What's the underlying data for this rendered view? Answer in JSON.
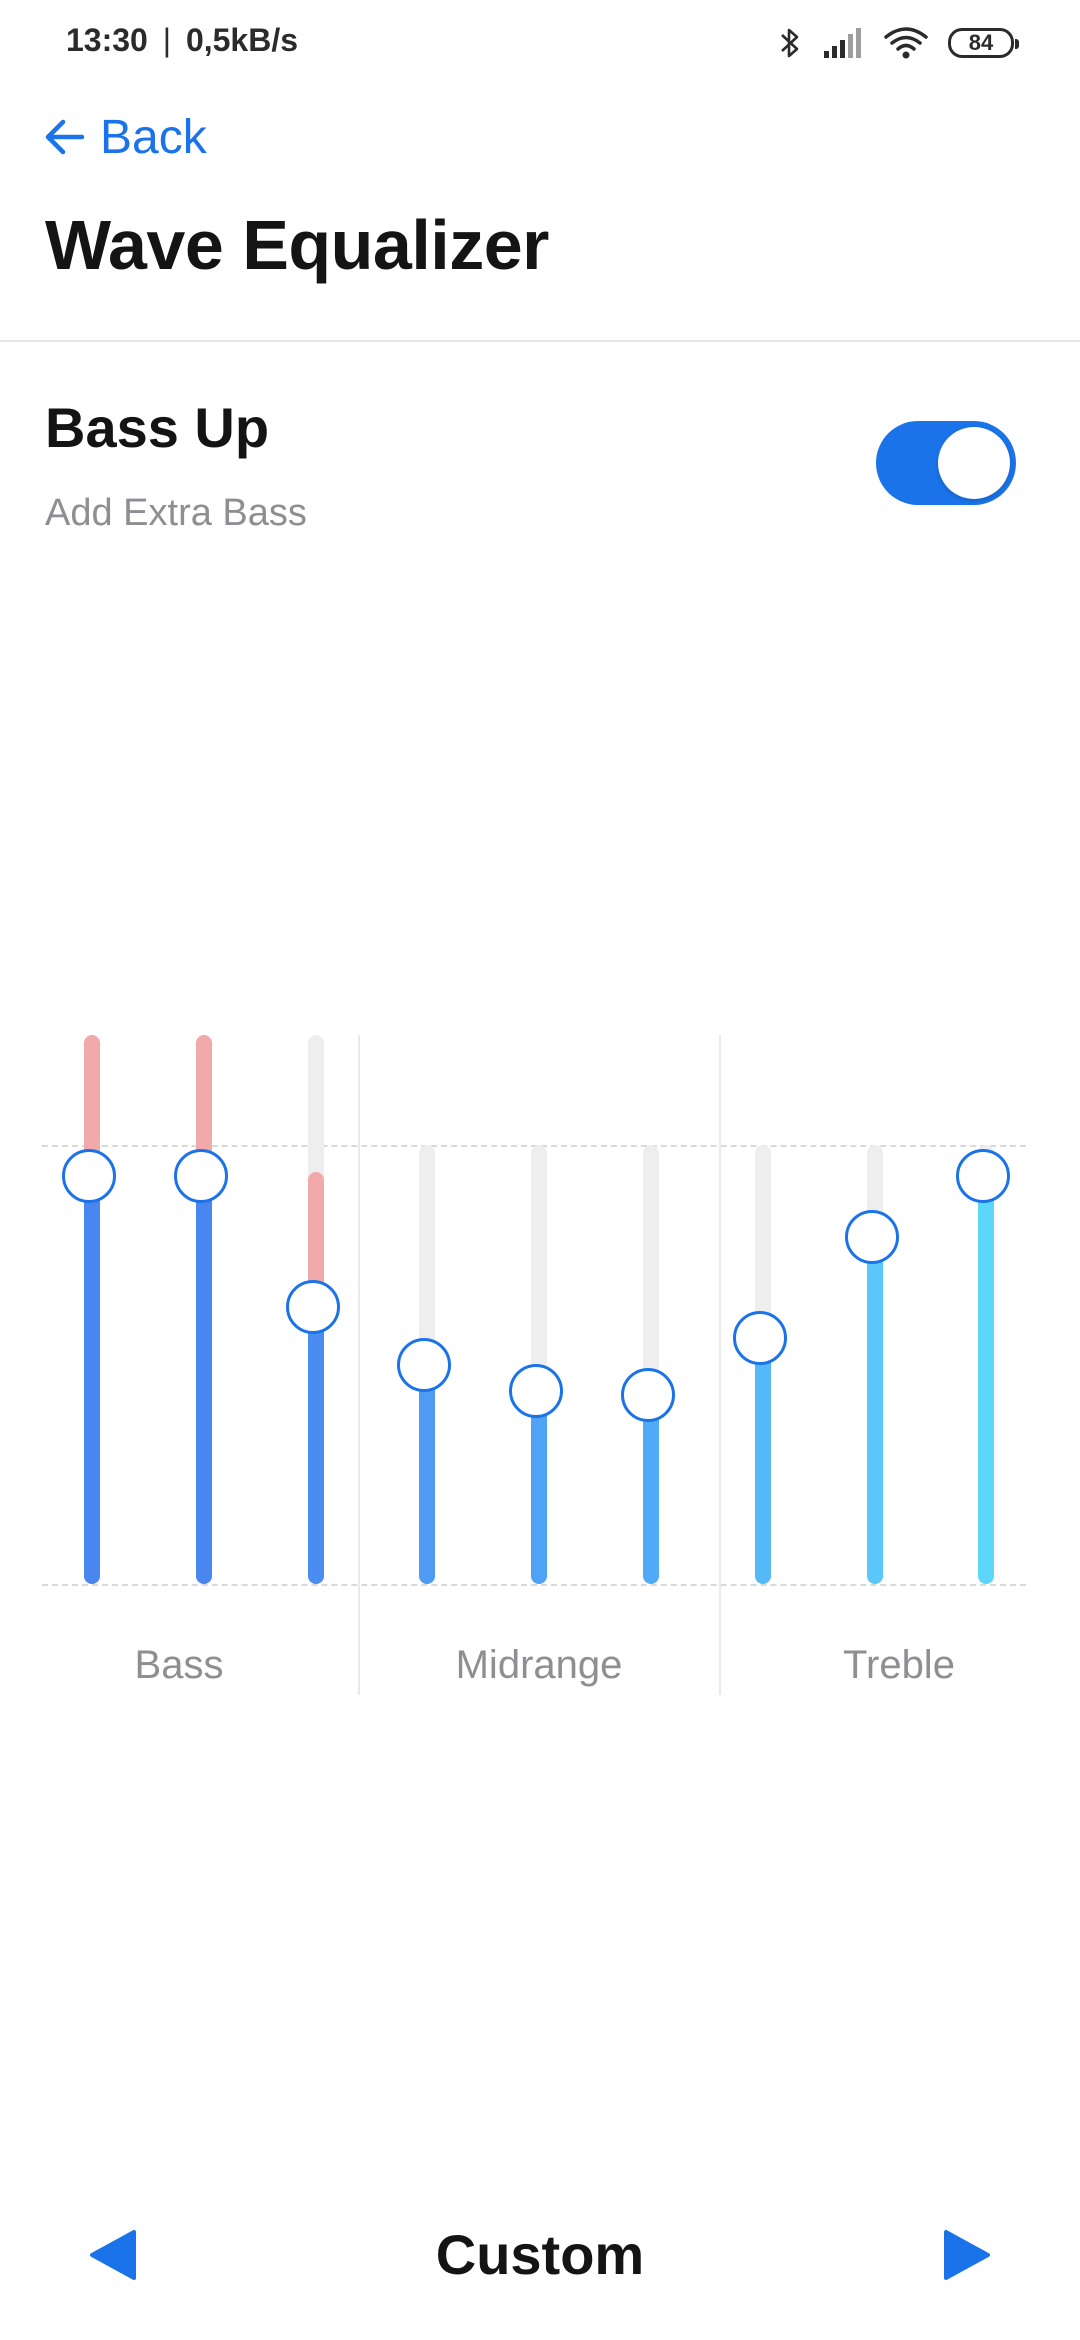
{
  "status_bar": {
    "time": "13:30",
    "separator": "|",
    "network_speed": "0,5kB/s",
    "battery": "84",
    "icons": [
      "bluetooth-icon",
      "signal-icon",
      "wifi-icon",
      "battery-icon"
    ]
  },
  "header": {
    "back_label": "Back",
    "title": "Wave Equalizer"
  },
  "bass_up": {
    "title": "Bass Up",
    "subtitle": "Add Extra Bass",
    "enabled": true
  },
  "equalizer": {
    "groups": [
      {
        "label": "Bass"
      },
      {
        "label": "Midrange"
      },
      {
        "label": "Treble"
      }
    ],
    "bands": [
      {
        "group": "Bass",
        "level": 0.93,
        "boosted": true,
        "color": "#4a86f0"
      },
      {
        "group": "Bass",
        "level": 0.93,
        "boosted": true,
        "color": "#4a86f0"
      },
      {
        "group": "Bass",
        "level": 0.63,
        "boosted": true,
        "color": "#4a8cf0"
      },
      {
        "group": "Midrange",
        "level": 0.5,
        "boosted": false,
        "color": "#4f9bf3"
      },
      {
        "group": "Midrange",
        "level": 0.44,
        "boosted": false,
        "color": "#4fa3f4"
      },
      {
        "group": "Midrange",
        "level": 0.43,
        "boosted": false,
        "color": "#50aaf5"
      },
      {
        "group": "Treble",
        "level": 0.56,
        "boosted": false,
        "color": "#55b8f7"
      },
      {
        "group": "Treble",
        "level": 0.79,
        "boosted": false,
        "color": "#5ac7f9"
      },
      {
        "group": "Treble",
        "level": 0.93,
        "boosted": false,
        "color": "#5dd6fb"
      }
    ],
    "accent_color": "#1a73e8",
    "boost_color": "#f2a9a9"
  },
  "preset": {
    "name": "Custom",
    "prev_icon": "triangle-left-icon",
    "next_icon": "triangle-right-icon"
  }
}
